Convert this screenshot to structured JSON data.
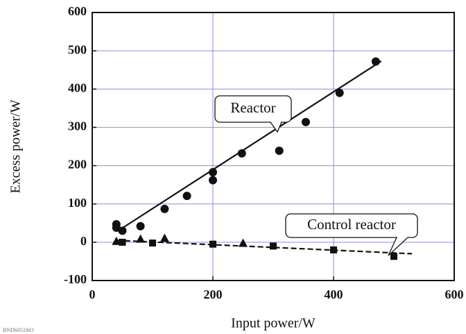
{
  "chart_data": {
    "type": "scatter",
    "x_label": "Input power/W",
    "y_label": "Excess power/W",
    "xlim": [
      0,
      600
    ],
    "xticks": [
      0,
      200,
      400,
      600
    ],
    "ylim": [
      -100,
      600
    ],
    "yticks": [
      -100,
      0,
      100,
      200,
      300,
      400,
      500,
      600
    ],
    "grid": true,
    "grid_color": "#8a8ee0",
    "series": [
      {
        "marker": "circle",
        "color": "#111111",
        "x": [
          40,
          40,
          50,
          80,
          120,
          157,
          200,
          200,
          248,
          310,
          354,
          410,
          470
        ],
        "values": [
          47,
          38,
          30,
          42,
          87,
          121,
          183,
          162,
          232,
          239,
          314,
          390,
          472
        ]
      },
      {
        "marker": "triangle",
        "color": "#111111",
        "x": [
          40,
          80,
          120,
          250
        ],
        "values": [
          2,
          8,
          10,
          -3
        ]
      },
      {
        "marker": "square",
        "color": "#111111",
        "x": [
          50,
          100,
          200,
          300,
          400,
          500
        ],
        "values": [
          0,
          -2,
          -5,
          -10,
          -20,
          -37
        ]
      }
    ],
    "lines": [
      {
        "dash": false,
        "color": "#111111",
        "x": [
          42,
          479
        ],
        "values": [
          29,
          473
        ]
      },
      {
        "dash": true,
        "color": "#111111",
        "x": [
          40,
          530
        ],
        "values": [
          5,
          -30
        ]
      }
    ],
    "annotations": [
      "Reactor",
      "Control reactor"
    ],
    "footnote": "BND60518#3"
  }
}
